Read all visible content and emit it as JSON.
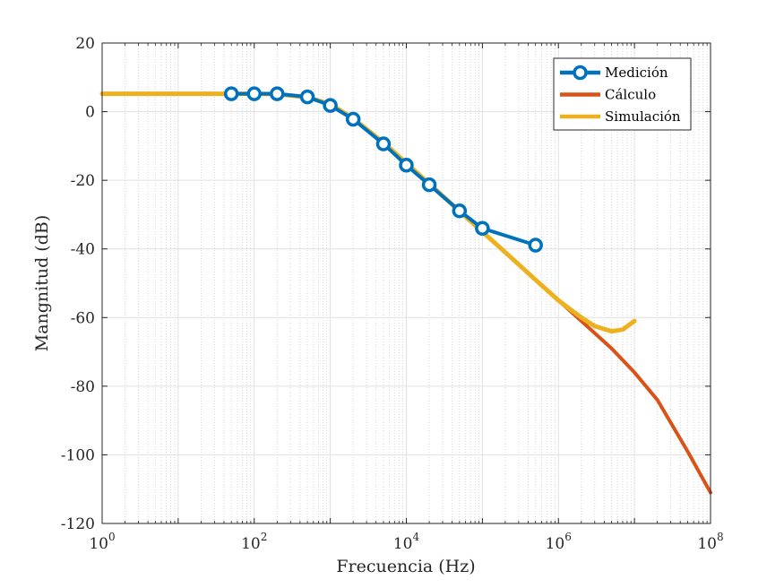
{
  "chart_data": {
    "type": "line",
    "xlabel": "Frecuencia (Hz)",
    "ylabel": "Mangnitud (dB)",
    "xscale": "log",
    "xlim": [
      1,
      100000000
    ],
    "ylim": [
      -120,
      20
    ],
    "grid": true,
    "minor_grid": true,
    "legend_position": "top-right",
    "x_ticks": [
      {
        "base": "10",
        "exp": "0",
        "value": 1
      },
      {
        "base": "10",
        "exp": "2",
        "value": 100
      },
      {
        "base": "10",
        "exp": "4",
        "value": 10000
      },
      {
        "base": "10",
        "exp": "6",
        "value": 1000000
      },
      {
        "base": "10",
        "exp": "8",
        "value": 100000000
      }
    ],
    "y_ticks": [
      {
        "label": "20",
        "value": 20
      },
      {
        "label": "0",
        "value": 0
      },
      {
        "label": "-20",
        "value": -20
      },
      {
        "label": "-40",
        "value": -40
      },
      {
        "label": "-60",
        "value": -60
      },
      {
        "label": "-80",
        "value": -80
      },
      {
        "label": "-100",
        "value": -100
      },
      {
        "label": "-120",
        "value": -120
      }
    ],
    "series": [
      {
        "name": "Cálculo",
        "color": "#D95319",
        "line_width": 4,
        "marker": "none",
        "x": [
          1,
          10,
          50,
          100,
          200,
          500,
          1000,
          2000,
          5000,
          10000,
          20000,
          50000,
          100000,
          200000,
          500000,
          1000000,
          2000000,
          5000000,
          10000000,
          20000000,
          50000000,
          100000000
        ],
        "y": [
          5.2,
          5.2,
          5.2,
          5.2,
          5.1,
          4.2,
          2.2,
          -2.0,
          -9.0,
          -15.0,
          -21.0,
          -29.0,
          -35.0,
          -41.0,
          -49.0,
          -55.0,
          -61.0,
          -69.0,
          -76.0,
          -84.0,
          -99.0,
          -111.0
        ]
      },
      {
        "name": "Simulación",
        "color": "#EDB120",
        "line_width": 5,
        "marker": "none",
        "x": [
          1,
          10,
          50,
          100,
          200,
          500,
          1000,
          2000,
          5000,
          10000,
          20000,
          50000,
          100000,
          200000,
          500000,
          1000000,
          2000000,
          3000000,
          5000000,
          7000000,
          10000000
        ],
        "y": [
          5.2,
          5.2,
          5.2,
          5.2,
          5.1,
          4.2,
          2.2,
          -2.0,
          -9.0,
          -15.0,
          -21.0,
          -29.0,
          -35.0,
          -41.0,
          -49.0,
          -55.0,
          -60.0,
          -62.5,
          -64.0,
          -63.5,
          -61.0
        ]
      },
      {
        "name": "Medición",
        "color": "#0072BD",
        "line_width": 4,
        "marker": "circle",
        "x": [
          50,
          100,
          200,
          500,
          1000,
          2000,
          5000,
          10000,
          20000,
          50000,
          100000,
          500000
        ],
        "y": [
          5.2,
          5.2,
          5.2,
          4.3,
          1.8,
          -2.2,
          -9.4,
          -15.6,
          -21.3,
          -28.9,
          -34.0,
          -38.9
        ]
      }
    ],
    "legend": [
      {
        "name": "Medición",
        "color": "#0072BD",
        "marker": "circle"
      },
      {
        "name": "Cálculo",
        "color": "#D95319",
        "marker": "none"
      },
      {
        "name": "Simulación",
        "color": "#EDB120",
        "marker": "none"
      }
    ]
  }
}
